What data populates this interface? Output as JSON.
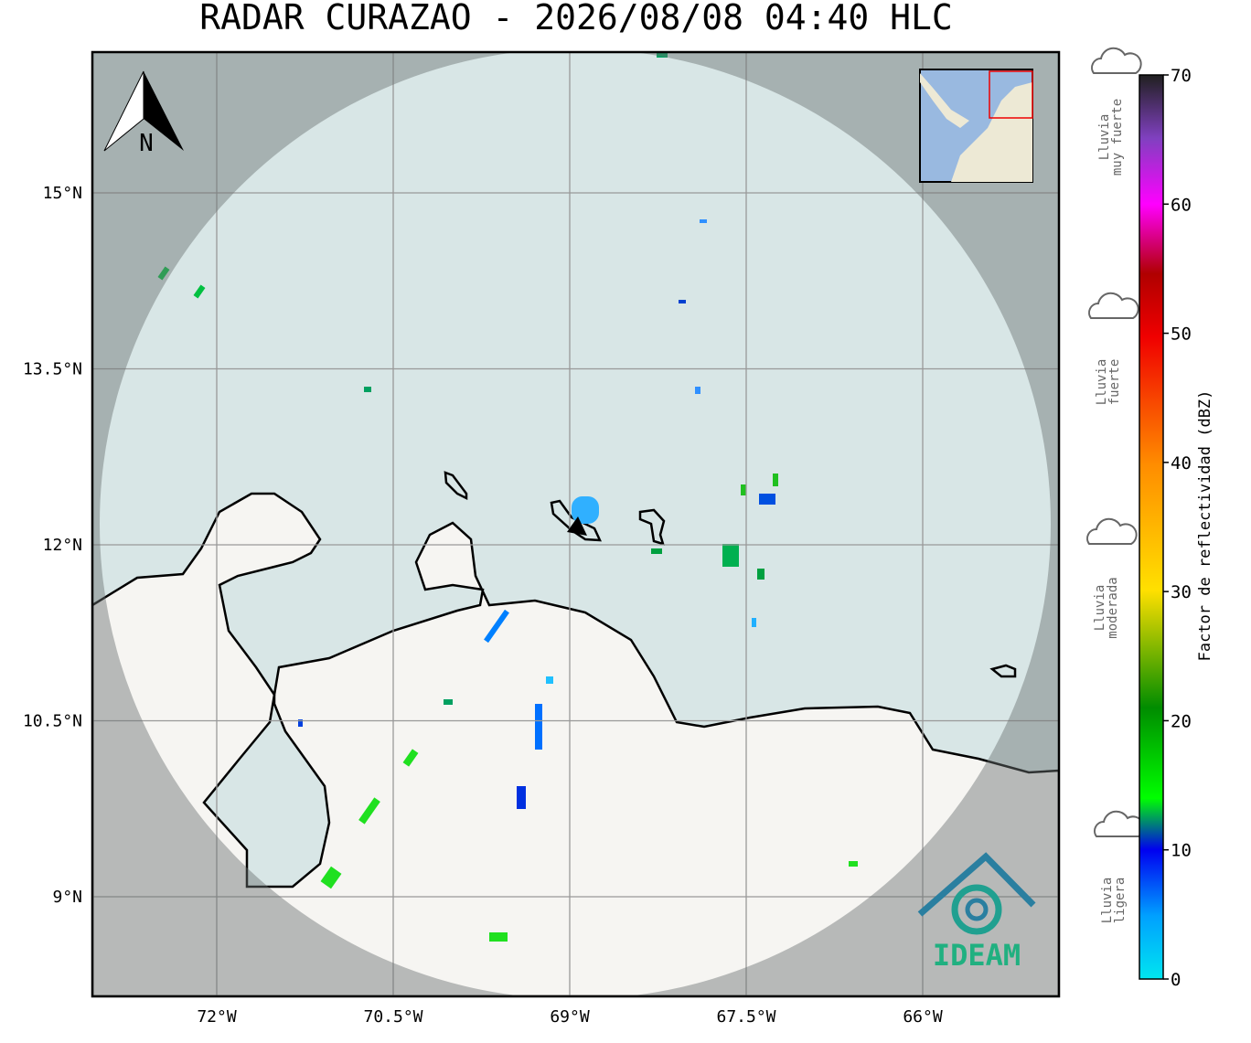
{
  "title": "RADAR CURAZAO - 2026/08/08 04:40 HLC",
  "north": "N",
  "lat_labels": [
    "15°N",
    "13.5°N",
    "12°N",
    "10.5°N",
    "9°N"
  ],
  "lon_labels": [
    "72°W",
    "70.5°W",
    "69°W",
    "67.5°W",
    "66°W"
  ],
  "colorbar": {
    "label": "Factor de reflectividad (dBZ)",
    "lim": [
      0,
      70
    ],
    "ticks": [
      0,
      10,
      20,
      30,
      40,
      50,
      60,
      70
    ]
  },
  "legend": [
    {
      "lines": [
        "Lluvia",
        "muy fuerte"
      ]
    },
    {
      "lines": [
        "Lluvia",
        "fuerte"
      ]
    },
    {
      "lines": [
        "Lluvia",
        "moderada"
      ]
    },
    {
      "lines": [
        "Lluvia",
        "ligera"
      ]
    }
  ],
  "logo": "IDEAM"
}
